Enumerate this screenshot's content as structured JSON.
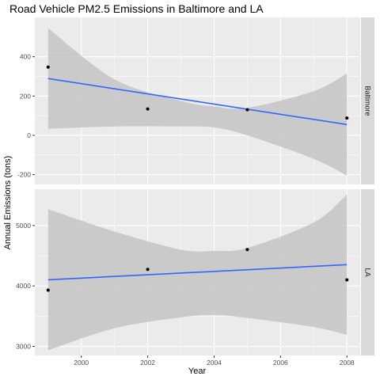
{
  "chart_data": {
    "type": "scatter",
    "title": "Road Vehicle PM2.5 Emissions in Baltimore and LA",
    "xlabel": "Year",
    "ylabel": "Annual Emissions (tons)",
    "xlim": [
      1998.6,
      2008.4
    ],
    "x_ticks": [
      2000,
      2002,
      2004,
      2006,
      2008
    ],
    "grid": true,
    "colors": {
      "panel_bg": "#ebebeb",
      "strip_bg": "#d9d9d9",
      "grid_major": "#ffffff",
      "ribbon": "#c4c4c4",
      "fit_line": "#3366ff",
      "point": "#000000"
    },
    "panels": [
      {
        "strip": "Baltimore",
        "ylim": [
          -250,
          600
        ],
        "y_ticks": [
          -200,
          0,
          200,
          400
        ],
        "points": [
          {
            "x": 1999,
            "y": 347
          },
          {
            "x": 2002,
            "y": 134
          },
          {
            "x": 2005,
            "y": 130
          },
          {
            "x": 2008,
            "y": 88
          }
        ],
        "fit": {
          "x": [
            1999,
            2008
          ],
          "y": [
            289,
            55
          ]
        },
        "confidence_band": {
          "x": [
            1999,
            2001,
            2003,
            2004,
            2005,
            2007,
            2008
          ],
          "upper": [
            545,
            285,
            175,
            147,
            140,
            225,
            315
          ],
          "lower": [
            33,
            45,
            45,
            40,
            0,
            -120,
            -205
          ]
        }
      },
      {
        "strip": "LA",
        "ylim": [
          2850,
          5600
        ],
        "y_ticks": [
          3000,
          4000,
          5000
        ],
        "points": [
          {
            "x": 1999,
            "y": 3931
          },
          {
            "x": 2002,
            "y": 4274
          },
          {
            "x": 2005,
            "y": 4601
          },
          {
            "x": 2008,
            "y": 4101
          }
        ],
        "fit": {
          "x": [
            1999,
            2008
          ],
          "y": [
            4101,
            4352
          ]
        },
        "confidence_band": {
          "x": [
            1999,
            2001,
            2003,
            2004,
            2005,
            2007,
            2008
          ],
          "upper": [
            5270,
            4900,
            4600,
            4580,
            4630,
            5050,
            5510
          ],
          "lower": [
            2935,
            3300,
            3480,
            3520,
            3470,
            3320,
            3190
          ]
        }
      }
    ]
  }
}
